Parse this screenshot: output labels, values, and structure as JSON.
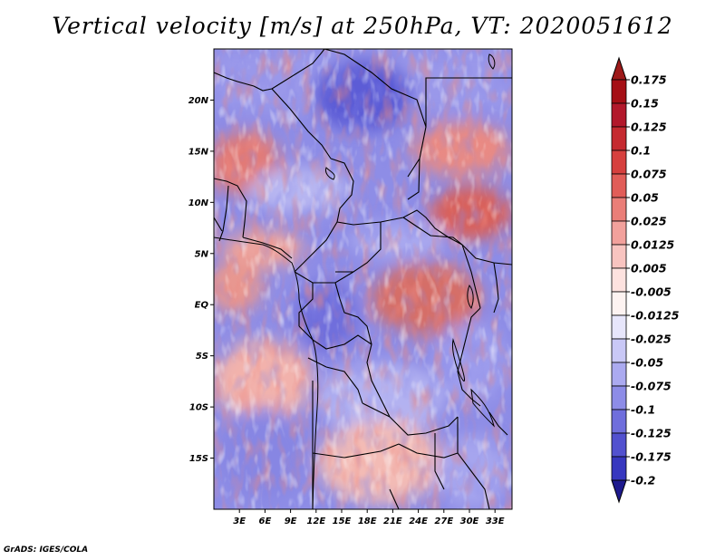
{
  "title": "Vertical velocity [m/s] at 250hPa, VT: 2020051612",
  "credit": "GrADS: IGES/COLA",
  "map": {
    "lon_range": [
      0,
      35
    ],
    "lat_range": [
      -20,
      25
    ],
    "lat_ticks": [
      {
        "value": 20,
        "label": "20N"
      },
      {
        "value": 15,
        "label": "15N"
      },
      {
        "value": 10,
        "label": "10N"
      },
      {
        "value": 5,
        "label": "5N"
      },
      {
        "value": 0,
        "label": "EQ"
      },
      {
        "value": -5,
        "label": "5S"
      },
      {
        "value": -10,
        "label": "10S"
      },
      {
        "value": -15,
        "label": "15S"
      }
    ],
    "lon_ticks": [
      {
        "value": 3,
        "label": "3E"
      },
      {
        "value": 6,
        "label": "6E"
      },
      {
        "value": 9,
        "label": "9E"
      },
      {
        "value": 12,
        "label": "12E"
      },
      {
        "value": 15,
        "label": "15E"
      },
      {
        "value": 18,
        "label": "18E"
      },
      {
        "value": 21,
        "label": "21E"
      },
      {
        "value": 24,
        "label": "24E"
      },
      {
        "value": 27,
        "label": "27E"
      },
      {
        "value": 30,
        "label": "30E"
      },
      {
        "value": 33,
        "label": "33E"
      }
    ]
  },
  "colorbar": {
    "levels": [
      {
        "label": "0.175",
        "color": "#a50f15"
      },
      {
        "label": "0.15",
        "color": "#b2182b"
      },
      {
        "label": "0.125",
        "color": "#c52a30"
      },
      {
        "label": "0.1",
        "color": "#d6403e"
      },
      {
        "label": "0.075",
        "color": "#e15d58"
      },
      {
        "label": "0.05",
        "color": "#ea7e78"
      },
      {
        "label": "0.025",
        "color": "#f2a19c"
      },
      {
        "label": "0.0125",
        "color": "#f8c4c0"
      },
      {
        "label": "0.005",
        "color": "#fde2df"
      },
      {
        "label": "-0.005",
        "color": "#fdf3f1"
      },
      {
        "label": "-0.0125",
        "color": "#e7e6fb"
      },
      {
        "label": "-0.025",
        "color": "#c9c8f6"
      },
      {
        "label": "-0.05",
        "color": "#abaaf0"
      },
      {
        "label": "-0.075",
        "color": "#8d8ce7"
      },
      {
        "label": "-0.1",
        "color": "#6f6edc"
      },
      {
        "label": "-0.125",
        "color": "#5251cf"
      },
      {
        "label": "-0.175",
        "color": "#3737bf"
      },
      {
        "label": "-0.2",
        "color": "#2323a9"
      }
    ],
    "top_color": "#9e1a1a",
    "bottom_color": "#1e1a8e"
  }
}
